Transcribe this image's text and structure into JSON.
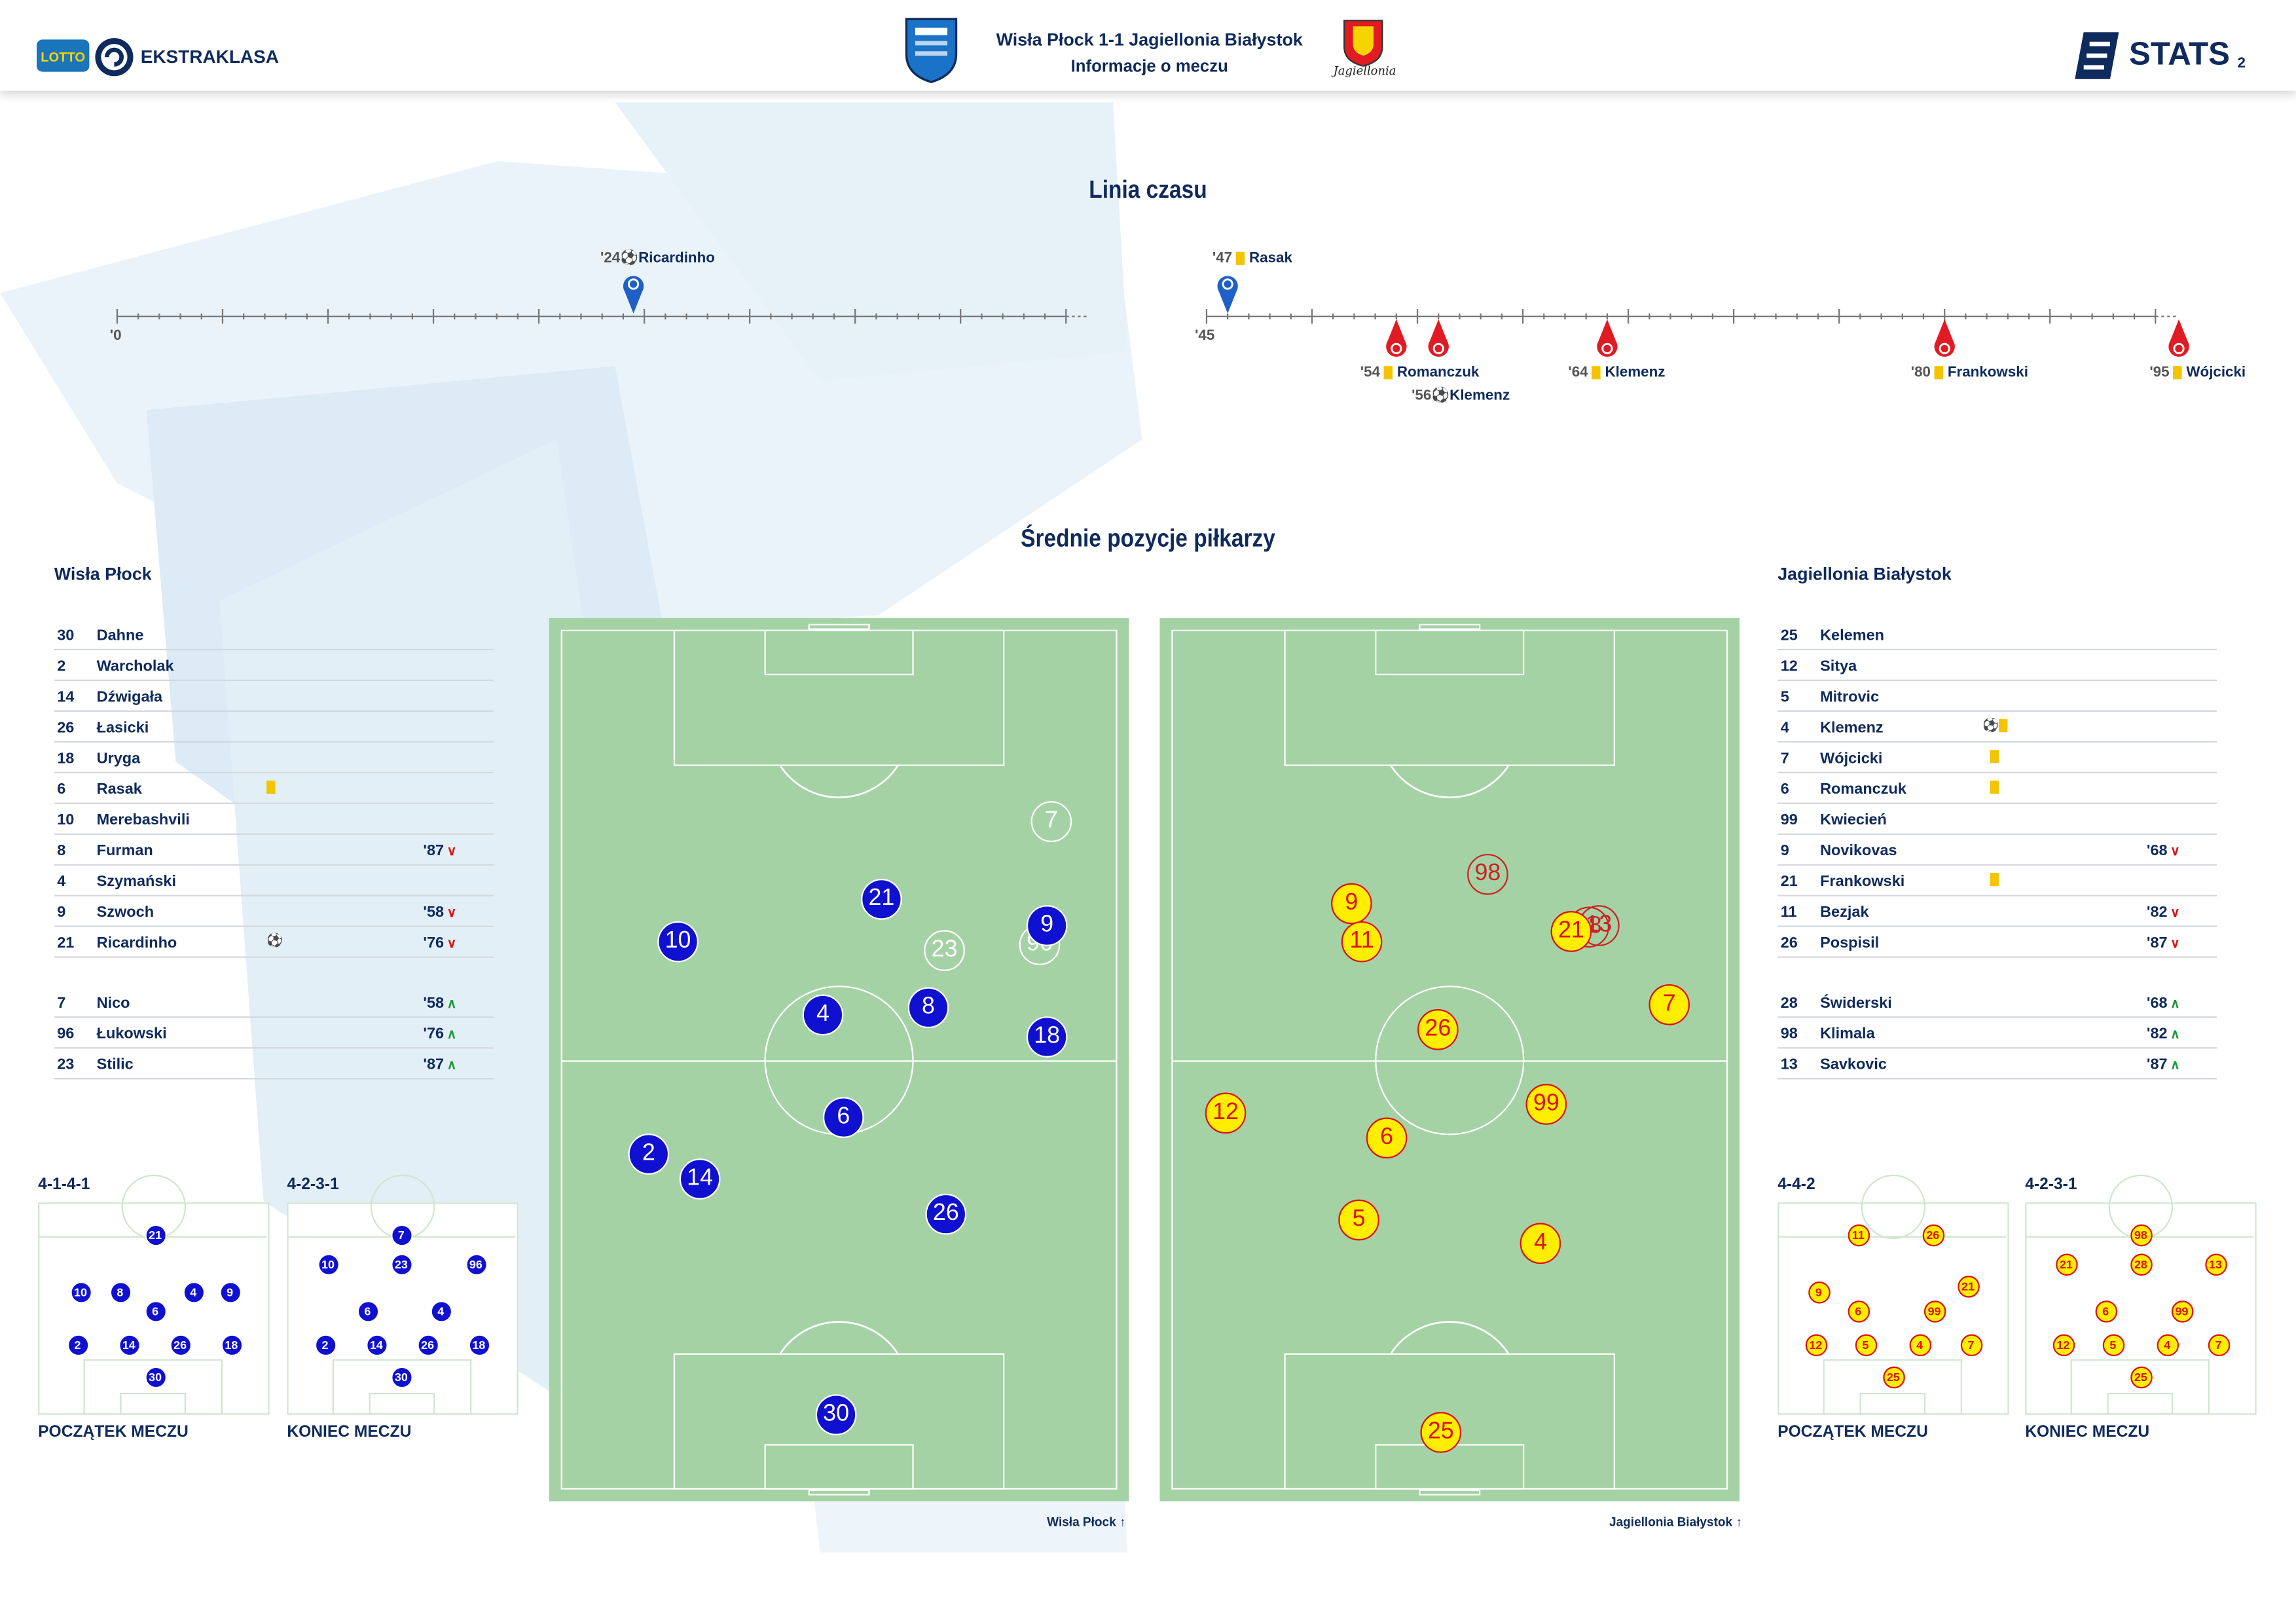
{
  "header": {
    "brand": "EKSTRAKLASA",
    "sponsor": "LOTTO",
    "match_title": "Wisła Płock 1-1 Jagiellonia Białystok",
    "subtitle": "Informacje o meczu",
    "stats_brand": "STATS",
    "page_number": "2",
    "home_crest_text": "WISŁA PŁOCK",
    "away_crest_text": "Jagiellonia"
  },
  "timeline": {
    "title": "Linia czasu",
    "first_half_start": "'0",
    "second_half_start": "'45",
    "home_events": [
      {
        "minute": "'24",
        "type": "goal",
        "player": "Ricardinho"
      },
      {
        "minute": "'47",
        "type": "yellow",
        "player": "Rasak"
      }
    ],
    "away_events": [
      {
        "minute": "'54",
        "type": "yellow",
        "player": "Romanczuk"
      },
      {
        "minute": "'56",
        "type": "goal",
        "player": "Klemenz"
      },
      {
        "minute": "'64",
        "type": "yellow",
        "player": "Klemenz"
      },
      {
        "minute": "'80",
        "type": "yellow",
        "player": "Frankowski"
      },
      {
        "minute": "'95",
        "type": "yellow",
        "player": "Wójcicki"
      }
    ]
  },
  "positions": {
    "title": "Średnie pozycje piłkarzy",
    "home_caption": "Wisła Płock",
    "away_caption": "Jagiellonia Białystok",
    "home_players": [
      {
        "n": "30",
        "style": "blue"
      },
      {
        "n": "2",
        "style": "blue"
      },
      {
        "n": "14",
        "style": "blue"
      },
      {
        "n": "26",
        "style": "blue"
      },
      {
        "n": "18",
        "style": "blue"
      },
      {
        "n": "6",
        "style": "blue"
      },
      {
        "n": "10",
        "style": "blue"
      },
      {
        "n": "8",
        "style": "blue"
      },
      {
        "n": "4",
        "style": "blue"
      },
      {
        "n": "9",
        "style": "blue"
      },
      {
        "n": "21",
        "style": "blue"
      },
      {
        "n": "7",
        "style": "ghostw"
      },
      {
        "n": "96",
        "style": "ghostw"
      },
      {
        "n": "23",
        "style": "ghostw"
      }
    ],
    "away_players": [
      {
        "n": "25",
        "style": "yel"
      },
      {
        "n": "12",
        "style": "yel"
      },
      {
        "n": "5",
        "style": "yel"
      },
      {
        "n": "4",
        "style": "yel"
      },
      {
        "n": "7",
        "style": "yel"
      },
      {
        "n": "6",
        "style": "yel"
      },
      {
        "n": "99",
        "style": "yel"
      },
      {
        "n": "9",
        "style": "yel"
      },
      {
        "n": "26",
        "style": "yel"
      },
      {
        "n": "21",
        "style": "yel"
      },
      {
        "n": "11",
        "style": "yel"
      },
      {
        "n": "98",
        "style": "ghostr"
      },
      {
        "n": "28",
        "style": "ghostr"
      },
      {
        "n": "13",
        "style": "ghostr"
      }
    ]
  },
  "home_team": {
    "name": "Wisła Płock",
    "starters": [
      {
        "num": "30",
        "name": "Dahne",
        "event": "",
        "sub": "",
        "dir": ""
      },
      {
        "num": "2",
        "name": "Warcholak",
        "event": "",
        "sub": "",
        "dir": ""
      },
      {
        "num": "14",
        "name": "Dźwigała",
        "event": "",
        "sub": "",
        "dir": ""
      },
      {
        "num": "26",
        "name": "Łasicki",
        "event": "",
        "sub": "",
        "dir": ""
      },
      {
        "num": "18",
        "name": "Uryga",
        "event": "",
        "sub": "",
        "dir": ""
      },
      {
        "num": "6",
        "name": "Rasak",
        "event": "yellow",
        "sub": "",
        "dir": ""
      },
      {
        "num": "10",
        "name": "Merebashvili",
        "event": "",
        "sub": "",
        "dir": ""
      },
      {
        "num": "8",
        "name": "Furman",
        "event": "",
        "sub": "'87",
        "dir": "out"
      },
      {
        "num": "4",
        "name": "Szymański",
        "event": "",
        "sub": "",
        "dir": ""
      },
      {
        "num": "9",
        "name": "Szwoch",
        "event": "",
        "sub": "'58",
        "dir": "out"
      },
      {
        "num": "21",
        "name": "Ricardinho",
        "event": "goal",
        "sub": "'76",
        "dir": "out"
      }
    ],
    "subs": [
      {
        "num": "7",
        "name": "Nico",
        "sub": "'58",
        "dir": "in"
      },
      {
        "num": "96",
        "name": "Łukowski",
        "sub": "'76",
        "dir": "in"
      },
      {
        "num": "23",
        "name": "Stilic",
        "sub": "'87",
        "dir": "in"
      }
    ],
    "formation_start": "4-1-4-1",
    "formation_end": "4-2-3-1",
    "start_label": "POCZĄTEK MECZU",
    "end_label": "KONIEC MECZU"
  },
  "away_team": {
    "name": "Jagiellonia Białystok",
    "starters": [
      {
        "num": "25",
        "name": "Kelemen",
        "event": "",
        "sub": "",
        "dir": ""
      },
      {
        "num": "12",
        "name": "Sitya",
        "event": "",
        "sub": "",
        "dir": ""
      },
      {
        "num": "5",
        "name": "Mitrovic",
        "event": "",
        "sub": "",
        "dir": ""
      },
      {
        "num": "4",
        "name": "Klemenz",
        "event": "goal+yellow",
        "sub": "",
        "dir": ""
      },
      {
        "num": "7",
        "name": "Wójcicki",
        "event": "yellow",
        "sub": "",
        "dir": ""
      },
      {
        "num": "6",
        "name": "Romanczuk",
        "event": "yellow",
        "sub": "",
        "dir": ""
      },
      {
        "num": "99",
        "name": "Kwiecień",
        "event": "",
        "sub": "",
        "dir": ""
      },
      {
        "num": "9",
        "name": "Novikovas",
        "event": "",
        "sub": "'68",
        "dir": "out"
      },
      {
        "num": "21",
        "name": "Frankowski",
        "event": "yellow",
        "sub": "",
        "dir": ""
      },
      {
        "num": "11",
        "name": "Bezjak",
        "event": "",
        "sub": "'82",
        "dir": "out"
      },
      {
        "num": "26",
        "name": "Pospisil",
        "event": "",
        "sub": "'87",
        "dir": "out"
      }
    ],
    "subs": [
      {
        "num": "28",
        "name": "Świderski",
        "sub": "'68",
        "dir": "in"
      },
      {
        "num": "98",
        "name": "Klimala",
        "sub": "'82",
        "dir": "in"
      },
      {
        "num": "13",
        "name": "Savkovic",
        "sub": "'87",
        "dir": "in"
      }
    ],
    "formation_start": "4-4-2",
    "formation_end": "4-2-3-1",
    "start_label": "POCZĄTEK MECZU",
    "end_label": "KONIEC MECZU"
  }
}
